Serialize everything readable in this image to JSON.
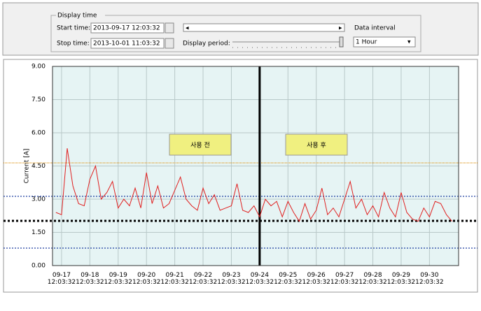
{
  "controls": {
    "group_title": "Display time",
    "start_label": "Start time:",
    "start_value": "2013-09-17  12:03:32",
    "stop_label": "Stop time:",
    "stop_value": "2013-10-01  11:03:32",
    "period_label": "Display period:",
    "interval_label": "Data interval",
    "interval_value": "1 Hour"
  },
  "chart_data": {
    "type": "line",
    "ylabel": "Current [A]",
    "grid": true,
    "xlim": [
      -0.32,
      14.03
    ],
    "ylim": [
      0,
      9
    ],
    "xticks": [
      {
        "value": 0,
        "label": "09-17 12:03:32"
      },
      {
        "value": 1,
        "label": "09-18 12:03:32"
      },
      {
        "value": 2,
        "label": "09-19 12:03:32"
      },
      {
        "value": 3,
        "label": "09-20 12:03:32"
      },
      {
        "value": 4,
        "label": "09-21 12:03:32"
      },
      {
        "value": 5,
        "label": "09-22 12:03:32"
      },
      {
        "value": 6,
        "label": "09-23 12:03:32"
      },
      {
        "value": 7,
        "label": "09-24 12:03:32"
      },
      {
        "value": 8,
        "label": "09-25 12:03:32"
      },
      {
        "value": 9,
        "label": "09-26 12:03:32"
      },
      {
        "value": 10,
        "label": "09-27 12:03:32"
      },
      {
        "value": 11,
        "label": "09-28 12:03:32"
      },
      {
        "value": 12,
        "label": "09-29 12:03:32"
      },
      {
        "value": 13,
        "label": "09-30 12:03:32"
      }
    ],
    "yticks": [
      {
        "value": 0,
        "label": "0.00"
      },
      {
        "value": 1.5,
        "label": "1.50"
      },
      {
        "value": 3,
        "label": "3.00"
      },
      {
        "value": 4.5,
        "label": "4.50"
      },
      {
        "value": 6,
        "label": "6.00"
      },
      {
        "value": 7.5,
        "label": "7.50"
      },
      {
        "value": 9,
        "label": "9.00"
      }
    ],
    "x": [
      -0.2,
      0,
      0.2,
      0.4,
      0.6,
      0.8,
      1,
      1.2,
      1.4,
      1.6,
      1.8,
      2,
      2.2,
      2.4,
      2.6,
      2.8,
      3,
      3.2,
      3.4,
      3.6,
      3.8,
      4,
      4.2,
      4.4,
      4.6,
      4.8,
      5,
      5.2,
      5.4,
      5.6,
      5.8,
      6,
      6.2,
      6.4,
      6.6,
      6.8,
      7,
      7.2,
      7.4,
      7.6,
      7.8,
      8,
      8.2,
      8.4,
      8.6,
      8.8,
      9,
      9.2,
      9.4,
      9.6,
      9.8,
      10,
      10.2,
      10.4,
      10.6,
      10.8,
      11,
      11.2,
      11.4,
      11.6,
      11.8,
      12,
      12.2,
      12.4,
      12.6,
      12.8,
      13,
      13.2,
      13.4,
      13.6,
      13.8
    ],
    "series": [
      {
        "color": "#e02020",
        "values": [
          2.4,
          2.3,
          5.3,
          3.6,
          2.8,
          2.7,
          3.9,
          4.5,
          3.0,
          3.3,
          3.8,
          2.6,
          3.0,
          2.7,
          3.5,
          2.6,
          4.2,
          2.8,
          3.6,
          2.6,
          2.8,
          3.4,
          4.0,
          3.0,
          2.7,
          2.5,
          3.5,
          2.8,
          3.2,
          2.5,
          2.6,
          2.7,
          3.7,
          2.5,
          2.4,
          2.7,
          2.2,
          3.0,
          2.7,
          2.9,
          2.2,
          2.9,
          2.4,
          2.0,
          2.8,
          2.1,
          2.5,
          3.5,
          2.3,
          2.6,
          2.2,
          3.0,
          3.8,
          2.6,
          3.0,
          2.3,
          2.7,
          2.2,
          3.3,
          2.6,
          2.2,
          3.3,
          2.4,
          2.1,
          2.0,
          2.6,
          2.2,
          2.9,
          2.8,
          2.3,
          2.0
        ]
      }
    ],
    "hlines": [
      {
        "value": 4.64,
        "color": "#e0a030",
        "dash": "1,1"
      },
      {
        "value": 3.13,
        "color": "#1f3fa0",
        "dash": "2,2"
      },
      {
        "value": 2.02,
        "color": "#000000",
        "dash": "3,3"
      },
      {
        "value": 0.79,
        "color": "#1f3fa0",
        "dash": "2,2"
      }
    ],
    "vline": 7,
    "annotations": [
      "사용 전",
      "사용 후"
    ]
  }
}
